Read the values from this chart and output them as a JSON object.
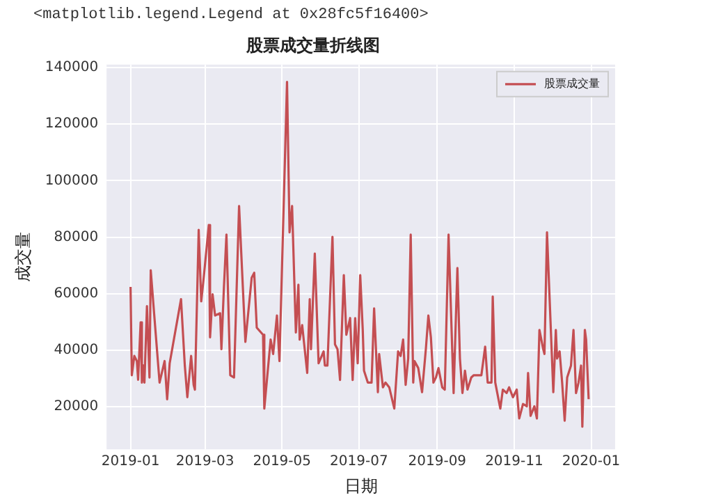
{
  "chart_data": {
    "type": "line",
    "title": "股票成交量折线图",
    "xlabel": "日期",
    "ylabel": "成交量",
    "annotations": [
      "<matplotlib.legend.Legend at 0x28fc5f16400>"
    ],
    "x": [
      "2019-01-01",
      "2019-01-02",
      "2019-01-04",
      "2019-01-06",
      "2019-01-07",
      "2019-01-09",
      "2019-01-10",
      "2019-01-11",
      "2019-01-12",
      "2019-01-14",
      "2019-01-16",
      "2019-01-17",
      "2019-01-21",
      "2019-01-24",
      "2019-01-28",
      "2019-01-30",
      "2019-02-01",
      "2019-02-10",
      "2019-02-13",
      "2019-02-15",
      "2019-02-18",
      "2019-02-20",
      "2019-02-21",
      "2019-02-24",
      "2019-02-26",
      "2019-02-28",
      "2019-03-04",
      "2019-03-05",
      "2019-03-07",
      "2019-03-09",
      "2019-03-13",
      "2019-03-14",
      "2019-03-16",
      "2019-03-18",
      "2019-03-21",
      "2019-03-24",
      "2019-03-28",
      "2019-04-02",
      "2019-04-07",
      "2019-04-09",
      "2019-04-11",
      "2019-04-16",
      "2019-04-17",
      "2019-04-22",
      "2019-04-24",
      "2019-04-27",
      "2019-04-29",
      "2019-05-05",
      "2019-05-07",
      "2019-05-09",
      "2019-05-12",
      "2019-05-14",
      "2019-05-15",
      "2019-05-17",
      "2019-05-21",
      "2019-05-23",
      "2019-05-24",
      "2019-05-27",
      "2019-05-30",
      "2019-06-03",
      "2019-06-04",
      "2019-06-06",
      "2019-06-10",
      "2019-06-12",
      "2019-06-14",
      "2019-06-16",
      "2019-06-19",
      "2019-06-21",
      "2019-06-24",
      "2019-06-26",
      "2019-06-28",
      "2019-06-30",
      "2019-07-02",
      "2019-07-04",
      "2019-07-05",
      "2019-07-08",
      "2019-07-11",
      "2019-07-13",
      "2019-07-16",
      "2019-07-17",
      "2019-07-20",
      "2019-07-22",
      "2019-07-25",
      "2019-07-29",
      "2019-08-01",
      "2019-08-03",
      "2019-08-05",
      "2019-08-07",
      "2019-08-09",
      "2019-08-11",
      "2019-08-13",
      "2019-08-14",
      "2019-08-17",
      "2019-08-20",
      "2019-08-23",
      "2019-08-25",
      "2019-08-27",
      "2019-08-29",
      "2019-08-31",
      "2019-09-02",
      "2019-09-05",
      "2019-09-07",
      "2019-09-10",
      "2019-09-13",
      "2019-09-14",
      "2019-09-17",
      "2019-09-19",
      "2019-09-21",
      "2019-09-23",
      "2019-09-25",
      "2019-09-28",
      "2019-09-30",
      "2019-10-06",
      "2019-10-09",
      "2019-10-11",
      "2019-10-14",
      "2019-10-15",
      "2019-10-17",
      "2019-10-21",
      "2019-10-23",
      "2019-10-26",
      "2019-10-28",
      "2019-10-31",
      "2019-11-03",
      "2019-11-05",
      "2019-11-08",
      "2019-11-11",
      "2019-11-12",
      "2019-11-14",
      "2019-11-17",
      "2019-11-19",
      "2019-11-21",
      "2019-11-24",
      "2019-11-25",
      "2019-11-27",
      "2019-12-02",
      "2019-12-04",
      "2019-12-05",
      "2019-12-07",
      "2019-12-09",
      "2019-12-11",
      "2019-12-13",
      "2019-12-16",
      "2019-12-18",
      "2019-12-20",
      "2019-12-22",
      "2019-12-24",
      "2019-12-25",
      "2019-12-27",
      "2019-12-28",
      "2019-12-30"
    ],
    "series": [
      {
        "name": "股票成交量",
        "color": "#c44e52",
        "values": [
          62400,
          31200,
          38000,
          36200,
          29600,
          49900,
          28600,
          34700,
          28600,
          55600,
          30400,
          68300,
          45500,
          28600,
          36200,
          22700,
          35400,
          58100,
          34600,
          23400,
          38000,
          27800,
          26100,
          82600,
          57300,
          65700,
          84300,
          44600,
          59800,
          52300,
          53100,
          40400,
          62400,
          80900,
          31200,
          30400,
          91000,
          43000,
          65700,
          67400,
          48000,
          45500,
          19400,
          43800,
          38700,
          52300,
          36200,
          134900,
          81700,
          91000,
          46300,
          63200,
          43800,
          48900,
          32000,
          58100,
          40400,
          74200,
          35400,
          39600,
          34600,
          34600,
          80100,
          42100,
          40400,
          29500,
          66600,
          45500,
          51400,
          29500,
          51400,
          35400,
          66600,
          47200,
          32800,
          28600,
          28600,
          54800,
          25200,
          38700,
          26900,
          28600,
          26900,
          19400,
          39600,
          38000,
          43800,
          27800,
          37100,
          80900,
          28600,
          36200,
          33700,
          25200,
          40400,
          52300,
          44600,
          28600,
          30400,
          33700,
          26900,
          26100,
          80900,
          38700,
          24900,
          69100,
          37100,
          24900,
          32800,
          26100,
          30400,
          31200,
          31200,
          41300,
          28600,
          28600,
          59000,
          28600,
          19400,
          26100,
          24900,
          26900,
          23400,
          26100,
          15900,
          21000,
          20200,
          32000,
          16800,
          20200,
          15900,
          47200,
          40400,
          38700,
          81700,
          25200,
          47200,
          37100,
          39600,
          28600,
          15100,
          30400,
          34600,
          47200,
          24900,
          28600,
          34600,
          13000,
          47200,
          43800,
          22700
        ]
      }
    ],
    "xlim": [
      "2018-12-13",
      "2020-01-20"
    ],
    "xticks": [
      "2019-01",
      "2019-03",
      "2019-05",
      "2019-07",
      "2019-09",
      "2019-11",
      "2020-01"
    ],
    "ylim": [
      5000,
      141000
    ],
    "yticks": [
      20000,
      40000,
      60000,
      80000,
      100000,
      120000,
      140000
    ],
    "grid": true,
    "legend": "top right",
    "marker": "none",
    "line_style": "solid"
  }
}
